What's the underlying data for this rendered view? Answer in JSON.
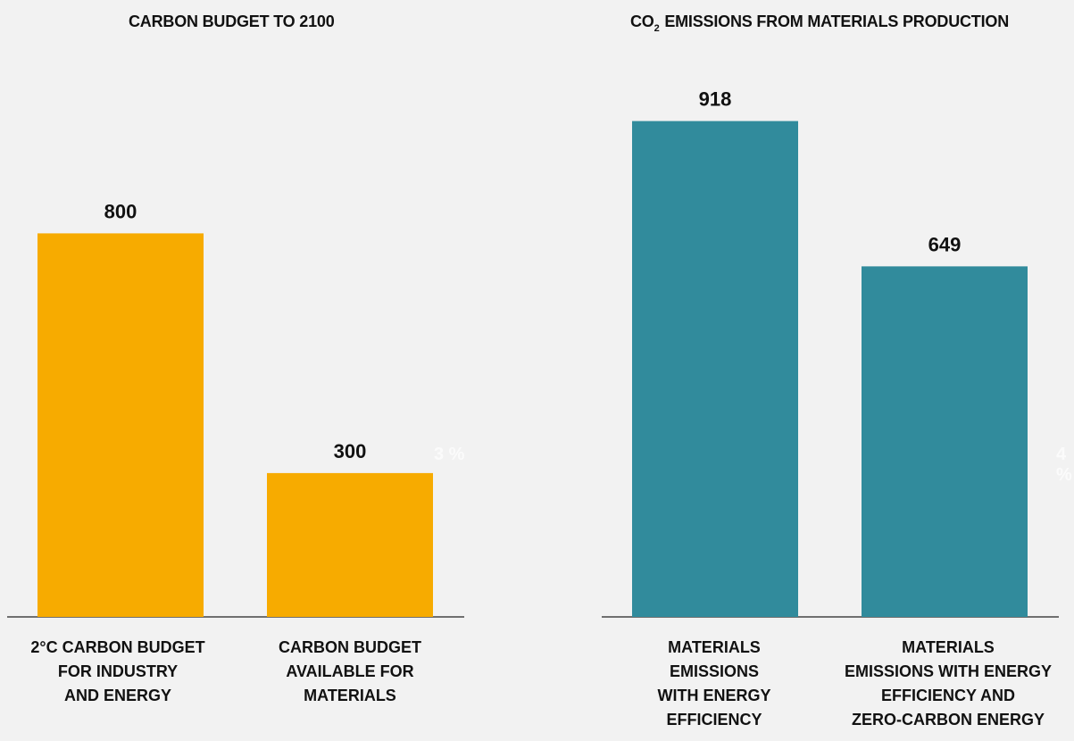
{
  "chart_data": [
    {
      "type": "bar",
      "title": "CARBON BUDGET TO 2100",
      "categories": [
        "2°C CARBON BUDGET\nFOR INDUSTRY\nAND ENERGY",
        "CARBON BUDGET\nAVAILABLE FOR\nMATERIALS"
      ],
      "values": [
        800,
        300
      ],
      "value_labels": [
        "800",
        "300"
      ],
      "ylim": [
        0,
        1000
      ],
      "grid": false,
      "color": "#f7ab00"
    },
    {
      "type": "bar",
      "title_prefix": "CO",
      "title_subscript": "2",
      "title_suffix": " EMISSIONS FROM MATERIALS PRODUCTION",
      "categories": [
        "MATERIALS\nEMISSIONS\nWITH ENERGY\nEFFICIENCY",
        "MATERIALS\nEMISSIONS WITH ENERGY\nEFFICIENCY AND\nZERO-CARBON ENERGY"
      ],
      "values": [
        918,
        649
      ],
      "value_labels": [
        "918",
        "649"
      ],
      "ylim": [
        0,
        1000
      ],
      "grid": false,
      "color": "#318b9c"
    }
  ]
}
